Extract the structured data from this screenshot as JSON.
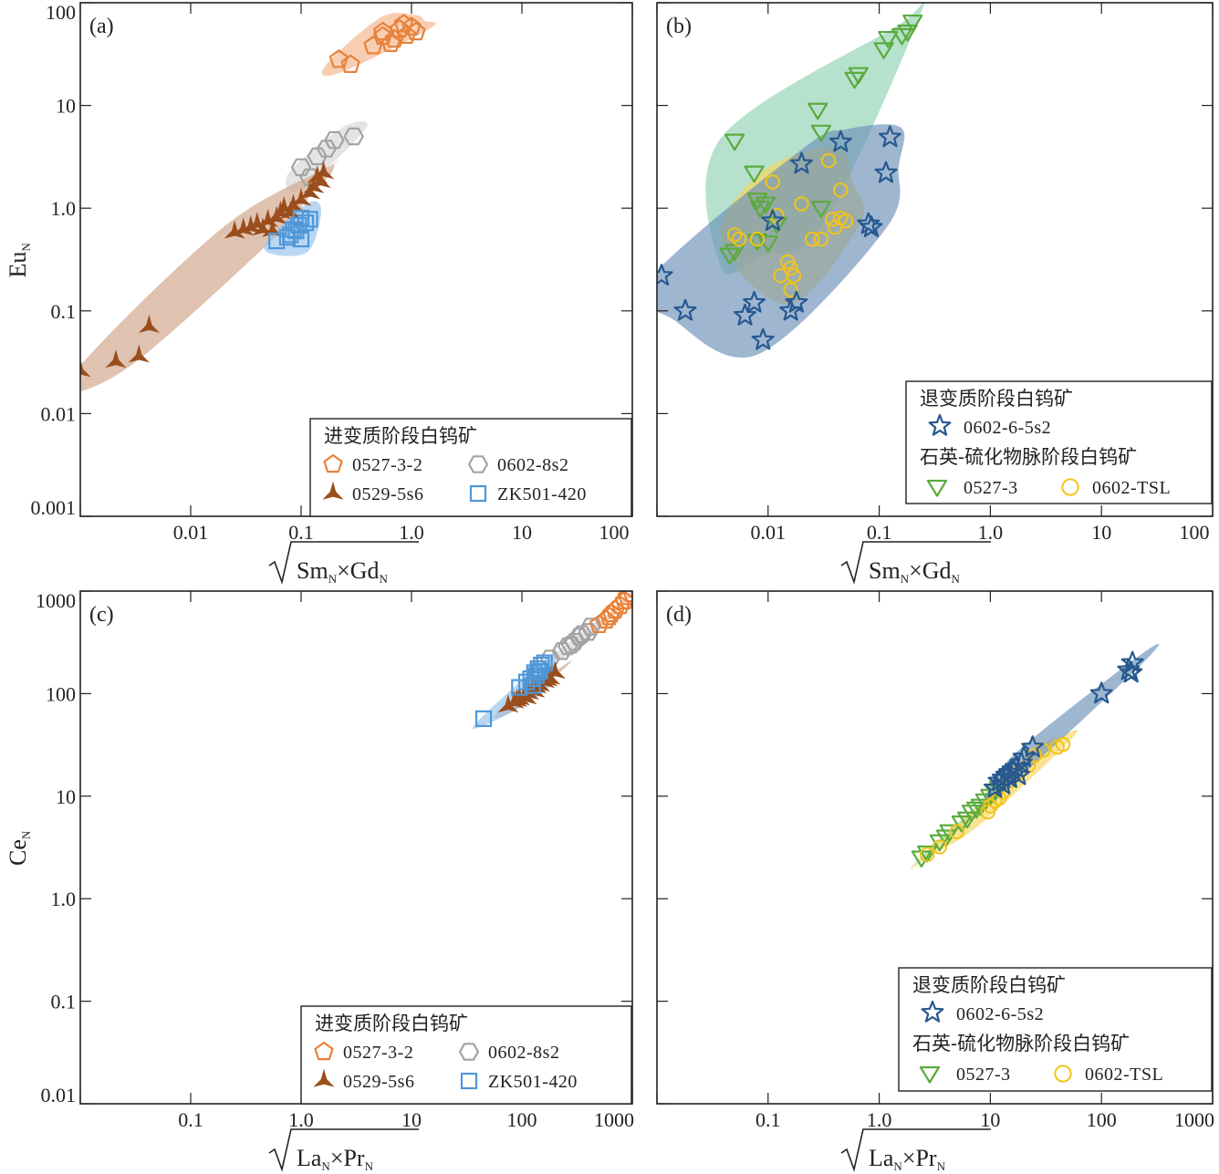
{
  "colors": {
    "orange": "#e8823a",
    "orange_fill": "#f4b48a",
    "gray": "#a3a3a3",
    "gray_fill": "#d6d6d6",
    "brown": "#9a4e1c",
    "brown_fill": "#cfa187",
    "lightblue": "#4f97d8",
    "lightblue_fill": "#93c2ec",
    "navy": "#27598f",
    "navy_fill": "#6b8fb8",
    "green": "#5aab3c",
    "green_fill": "#8fd1b0",
    "yellow": "#f2c317",
    "yellow_fill": "#f7d659"
  },
  "legends": {
    "prograde": {
      "title": "进变质阶段白钨矿",
      "items": [
        {
          "label": "0527-3-2",
          "marker": "pentagon-icon"
        },
        {
          "label": "0602-8s2",
          "marker": "hexagon-icon"
        },
        {
          "label": "0529-5s6",
          "marker": "tristar-icon"
        },
        {
          "label": "ZK501-420",
          "marker": "square-icon"
        }
      ]
    },
    "retro": {
      "title": "退变质阶段白钨矿",
      "item": {
        "label": "0602-6-5s2",
        "marker": "star-icon"
      },
      "title2": "石英-硫化物脉阶段白钨矿",
      "items2": [
        {
          "label": "0527-3",
          "marker": "down-triangle-icon"
        },
        {
          "label": "0602-TSL",
          "marker": "circle-icon"
        }
      ]
    }
  },
  "chart_data": [
    {
      "panel": "(a)",
      "type": "scatter",
      "xscale": "log",
      "yscale": "log",
      "xlim": [
        0.001,
        100
      ],
      "ylim": [
        0.001,
        100
      ],
      "xticks": [
        "0.01",
        "0.1",
        "1.0",
        "10",
        "100"
      ],
      "yticks": [
        "0.001",
        "0.01",
        "0.1",
        "1.0",
        "10",
        "100"
      ],
      "xlabel": {
        "pre": "Sm",
        "mid": "×Gd",
        "sub": "N"
      },
      "ylabel": {
        "main": "Eu",
        "sub": "N"
      },
      "legend": "prograde",
      "series": [
        {
          "name": "0527-3-2",
          "marker": "pentagon",
          "color": "orange",
          "fill": "orange_fill",
          "points": [
            [
              0.28,
              25
            ],
            [
              0.22,
              28
            ],
            [
              0.45,
              38
            ],
            [
              0.55,
              47
            ],
            [
              0.7,
              44
            ],
            [
              0.9,
              48
            ],
            [
              0.55,
              52
            ],
            [
              0.78,
              55
            ],
            [
              1.0,
              58
            ],
            [
              0.65,
              40
            ],
            [
              1.1,
              52
            ],
            [
              0.85,
              62
            ]
          ]
        },
        {
          "name": "0602-8s2",
          "marker": "hexagon",
          "color": "gray",
          "fill": "gray_fill",
          "points": [
            [
              0.1,
              2.5
            ],
            [
              0.14,
              3.2
            ],
            [
              0.17,
              3.8
            ],
            [
              0.2,
              4.6
            ],
            [
              0.3,
              5.0
            ],
            [
              0.12,
              2.0
            ]
          ]
        },
        {
          "name": "0529-5s6",
          "marker": "tristar",
          "color": "brown",
          "fill": "brown_fill",
          "points": [
            [
              0.001,
              0.026
            ],
            [
              0.0021,
              0.032
            ],
            [
              0.0034,
              0.036
            ],
            [
              0.0042,
              0.07
            ],
            [
              0.025,
              0.58
            ],
            [
              0.03,
              0.62
            ],
            [
              0.035,
              0.65
            ],
            [
              0.04,
              0.7
            ],
            [
              0.05,
              0.75
            ],
            [
              0.06,
              0.8
            ],
            [
              0.065,
              0.9
            ],
            [
              0.07,
              1.0
            ],
            [
              0.085,
              1.05
            ],
            [
              0.1,
              1.2
            ],
            [
              0.12,
              1.4
            ],
            [
              0.13,
              1.6
            ],
            [
              0.15,
              1.8
            ],
            [
              0.16,
              2.2
            ],
            [
              0.14,
              2.0
            ],
            [
              0.055,
              0.6
            ],
            [
              0.045,
              0.62
            ],
            [
              0.08,
              0.9
            ]
          ]
        },
        {
          "name": "ZK501-420",
          "marker": "square",
          "color": "lightblue",
          "fill": "lightblue_fill",
          "points": [
            [
              0.06,
              0.48
            ],
            [
              0.08,
              0.55
            ],
            [
              0.09,
              0.6
            ],
            [
              0.1,
              0.5
            ],
            [
              0.11,
              0.72
            ],
            [
              0.12,
              0.78
            ],
            [
              0.1,
              0.8
            ],
            [
              0.095,
              0.68
            ],
            [
              0.085,
              0.62
            ],
            [
              0.075,
              0.52
            ]
          ]
        }
      ]
    },
    {
      "panel": "(b)",
      "type": "scatter",
      "xscale": "log",
      "yscale": "log",
      "xlim": [
        0.001,
        100
      ],
      "ylim": [
        0.001,
        100
      ],
      "xticks": [
        "0.01",
        "0.1",
        "1.0",
        "10",
        "100"
      ],
      "xlabel": {
        "pre": "Sm",
        "mid": "×Gd",
        "sub": "N"
      },
      "legend": "retro",
      "series": [
        {
          "name": "0527-3",
          "marker": "down-triangle",
          "color": "green",
          "fill": "green_fill",
          "points": [
            [
              0.2,
              65
            ],
            [
              0.18,
              52
            ],
            [
              0.16,
              48
            ],
            [
              0.12,
              45
            ],
            [
              0.11,
              35
            ],
            [
              0.06,
              18
            ],
            [
              0.065,
              20
            ],
            [
              0.028,
              9
            ],
            [
              0.03,
              5.5
            ],
            [
              0.005,
              4.5
            ],
            [
              0.0075,
              2.2
            ],
            [
              0.008,
              1.2
            ],
            [
              0.0085,
              1.0
            ],
            [
              0.0095,
              1.1
            ],
            [
              0.012,
              0.7
            ],
            [
              0.008,
              0.48
            ],
            [
              0.01,
              0.46
            ],
            [
              0.0045,
              0.35
            ],
            [
              0.005,
              0.38
            ],
            [
              0.03,
              1.0
            ]
          ]
        },
        {
          "name": "0602-TSL",
          "marker": "circle",
          "color": "yellow",
          "fill": "yellow_fill",
          "points": [
            [
              0.005,
              0.55
            ],
            [
              0.0055,
              0.5
            ],
            [
              0.008,
              0.5
            ],
            [
              0.012,
              0.85
            ],
            [
              0.011,
              1.8
            ],
            [
              0.02,
              1.1
            ],
            [
              0.035,
              2.9
            ],
            [
              0.045,
              1.5
            ],
            [
              0.04,
              0.65
            ],
            [
              0.045,
              0.8
            ],
            [
              0.05,
              0.75
            ],
            [
              0.025,
              0.5
            ],
            [
              0.03,
              0.5
            ],
            [
              0.015,
              0.3
            ],
            [
              0.016,
              0.26
            ],
            [
              0.017,
              0.22
            ],
            [
              0.013,
              0.22
            ],
            [
              0.016,
              0.16
            ],
            [
              0.038,
              0.78
            ]
          ]
        },
        {
          "name": "0602-6-5s2",
          "marker": "star",
          "color": "navy",
          "fill": "navy_fill",
          "points": [
            [
              0.0011,
              0.22
            ],
            [
              0.0018,
              0.1
            ],
            [
              0.0062,
              0.09
            ],
            [
              0.0075,
              0.12
            ],
            [
              0.009,
              0.052
            ],
            [
              0.016,
              0.1
            ],
            [
              0.018,
              0.12
            ],
            [
              0.011,
              0.75
            ],
            [
              0.02,
              2.7
            ],
            [
              0.045,
              4.4
            ],
            [
              0.125,
              4.9
            ],
            [
              0.115,
              2.2
            ],
            [
              0.08,
              0.7
            ],
            [
              0.085,
              0.65
            ]
          ]
        }
      ]
    },
    {
      "panel": "(c)",
      "type": "scatter",
      "xscale": "log",
      "yscale": "log",
      "xlim": [
        0.01,
        1000
      ],
      "ylim": [
        0.01,
        1000
      ],
      "xticks": [
        "0.1",
        "1.0",
        "10",
        "100",
        "1000"
      ],
      "yticks": [
        "0.01",
        "0.1",
        "1.0",
        "10",
        "100",
        "1000"
      ],
      "xlabel": {
        "pre": "La",
        "mid": "×Pr",
        "sub": "N"
      },
      "ylabel": {
        "main": "Ce",
        "sub": "N"
      },
      "legend": "prograde",
      "series": [
        {
          "name": "0602-8s2",
          "marker": "hexagon",
          "color": "gray",
          "fill": "gray_fill",
          "points": [
            [
              180,
              220
            ],
            [
              230,
              260
            ],
            [
              260,
              290
            ],
            [
              300,
              320
            ],
            [
              350,
              380
            ],
            [
              400,
              400
            ],
            [
              420,
              450
            ],
            [
              330,
              360
            ],
            [
              280,
              300
            ]
          ]
        },
        {
          "name": "0527-3-2",
          "marker": "pentagon",
          "color": "orange",
          "fill": "orange_fill",
          "points": [
            [
              500,
              470
            ],
            [
              580,
              520
            ],
            [
              650,
              600
            ],
            [
              700,
              650
            ],
            [
              780,
              720
            ],
            [
              900,
              880
            ],
            [
              1000,
              940
            ],
            [
              850,
              800
            ],
            [
              620,
              560
            ]
          ]
        },
        {
          "name": "0529-5s6",
          "marker": "tristar",
          "color": "brown",
          "fill": "brown_fill",
          "points": [
            [
              75,
              75
            ],
            [
              85,
              82
            ],
            [
              95,
              88
            ],
            [
              105,
              95
            ],
            [
              115,
              100
            ],
            [
              125,
              110
            ],
            [
              135,
              115
            ],
            [
              145,
              120
            ],
            [
              160,
              130
            ],
            [
              180,
              140
            ],
            [
              200,
              160
            ],
            [
              110,
              90
            ],
            [
              90,
              85
            ],
            [
              130,
              105
            ],
            [
              170,
              135
            ]
          ]
        },
        {
          "name": "ZK501-420",
          "marker": "square",
          "color": "lightblue",
          "fill": "lightblue_fill",
          "points": [
            [
              45,
              57
            ],
            [
              95,
              115
            ],
            [
              110,
              130
            ],
            [
              120,
              140
            ],
            [
              130,
              160
            ],
            [
              140,
              175
            ],
            [
              150,
              190
            ],
            [
              160,
              200
            ],
            [
              125,
              120
            ],
            [
              135,
              150
            ],
            [
              145,
              165
            ]
          ]
        }
      ]
    },
    {
      "panel": "(d)",
      "type": "scatter",
      "xscale": "log",
      "yscale": "log",
      "xlim": [
        0.01,
        1000
      ],
      "ylim": [
        0.01,
        1000
      ],
      "xticks": [
        "0.1",
        "1.0",
        "10",
        "100",
        "1000"
      ],
      "xlabel": {
        "pre": "La",
        "mid": "×Pr",
        "sub": "N"
      },
      "legend": "retro",
      "series": [
        {
          "name": "0527-3",
          "marker": "down-triangle",
          "color": "green",
          "fill": "green_fill",
          "points": [
            [
              2.4,
              2.5
            ],
            [
              2.7,
              2.8
            ],
            [
              3.5,
              3.6
            ],
            [
              4,
              4
            ],
            [
              4.3,
              4.5
            ],
            [
              5.5,
              5.5
            ],
            [
              6.2,
              6
            ],
            [
              6.8,
              7
            ],
            [
              7.5,
              7.5
            ],
            [
              8.2,
              8
            ],
            [
              9,
              9
            ],
            [
              10,
              10
            ],
            [
              11,
              11
            ],
            [
              12,
              12
            ]
          ]
        },
        {
          "name": "0602-TSL",
          "marker": "circle",
          "color": "yellow",
          "fill": "yellow_fill",
          "points": [
            [
              2.7,
              2.7
            ],
            [
              3.5,
              3.2
            ],
            [
              5,
              4.5
            ],
            [
              9.5,
              7
            ],
            [
              10,
              8
            ],
            [
              11,
              9
            ],
            [
              12,
              9.5
            ],
            [
              13,
              11
            ],
            [
              15,
              14
            ],
            [
              18,
              17
            ],
            [
              22,
              20
            ],
            [
              25,
              25
            ],
            [
              30,
              28
            ],
            [
              40,
              30
            ],
            [
              45,
              32
            ]
          ]
        },
        {
          "name": "0602-6-5s2",
          "marker": "star",
          "color": "navy",
          "fill": "navy_fill",
          "points": [
            [
              11,
              12
            ],
            [
              12,
              14
            ],
            [
              13,
              15
            ],
            [
              14,
              16
            ],
            [
              15,
              17
            ],
            [
              16,
              18
            ],
            [
              17,
              19
            ],
            [
              19,
              21
            ],
            [
              20,
              24
            ],
            [
              24,
              30
            ],
            [
              13,
              13
            ],
            [
              15,
              15
            ],
            [
              18,
              16
            ],
            [
              100,
              100
            ],
            [
              175,
              170
            ],
            [
              190,
              200
            ],
            [
              185,
              160
            ]
          ]
        }
      ]
    }
  ]
}
